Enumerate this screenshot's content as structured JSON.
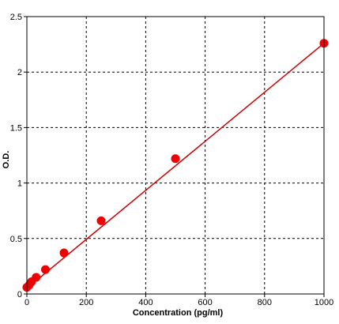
{
  "chart_data": {
    "type": "scatter",
    "title": "",
    "xlabel": "Concentration (pg/ml)",
    "ylabel": "O.D.",
    "xlim": [
      0,
      1000
    ],
    "ylim": [
      0,
      2.5
    ],
    "x_ticks": [
      0,
      200,
      400,
      600,
      800,
      1000
    ],
    "y_ticks": [
      0,
      0.5,
      1,
      1.5,
      2,
      2.5
    ],
    "x_tick_labels": [
      "0",
      "200",
      "400",
      "600",
      "800",
      "1000"
    ],
    "y_tick_labels": [
      "0",
      "0.5",
      "1",
      "1.5",
      "2",
      "2.5"
    ],
    "grid": true,
    "grid_style": "dashed",
    "points": {
      "x": [
        0,
        7.8,
        15.6,
        31.2,
        62.5,
        125,
        250,
        500,
        1000
      ],
      "y": [
        0.06,
        0.08,
        0.11,
        0.15,
        0.22,
        0.37,
        0.66,
        1.22,
        2.26
      ]
    },
    "fit_line": {
      "x": [
        0,
        1000
      ],
      "y": [
        0.05,
        2.26
      ]
    },
    "colors": {
      "points": "#ee0000",
      "line": "#cc0000",
      "grid": "#000000",
      "axes": "#000000",
      "background": "#ffffff"
    }
  }
}
